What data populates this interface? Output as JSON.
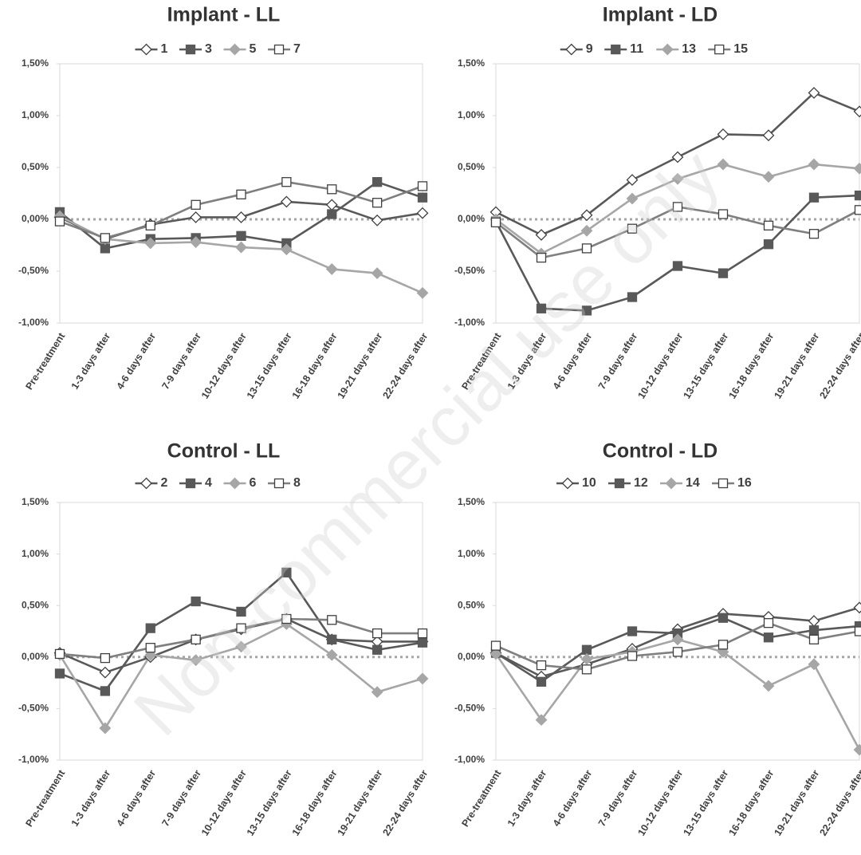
{
  "chart_data": [
    {
      "type": "line",
      "title": "Implant - LL",
      "categories": [
        "Pre-treatment",
        "1-3 days after",
        "4-6 days after",
        "7-9 days after",
        "10-12 days after",
        "13-15 days after",
        "16-18 days after",
        "19-21 days after",
        "22-24 days after"
      ],
      "ylim": [
        -1,
        1.5
      ],
      "yticks": [
        {
          "value": -1,
          "label": "-1,00%"
        },
        {
          "value": -0.5,
          "label": "-0,50%"
        },
        {
          "value": 0,
          "label": "0,00%"
        },
        {
          "value": 0.5,
          "label": "0,50%"
        },
        {
          "value": 1,
          "label": "1,00%"
        },
        {
          "value": 1.5,
          "label": "1,50%"
        }
      ],
      "reference_line": 0,
      "legend": "top",
      "series": [
        {
          "name": "1",
          "color": "#595959",
          "marker": "diamond",
          "marker_fill": "#ffffff",
          "values": [
            0.02,
            -0.19,
            -0.05,
            0.02,
            0.02,
            0.17,
            0.14,
            -0.01,
            0.06
          ]
        },
        {
          "name": "3",
          "color": "#595959",
          "marker": "square",
          "marker_fill": "#595959",
          "values": [
            0.07,
            -0.28,
            -0.19,
            -0.18,
            -0.16,
            -0.23,
            0.05,
            0.36,
            0.21
          ]
        },
        {
          "name": "5",
          "color": "#a6a6a6",
          "marker": "diamond",
          "marker_fill": "#a6a6a6",
          "values": [
            0.03,
            -0.19,
            -0.23,
            -0.22,
            -0.27,
            -0.29,
            -0.48,
            -0.52,
            -0.71
          ]
        },
        {
          "name": "7",
          "color": "#7f7f7f",
          "marker": "square",
          "marker_fill": "#ffffff",
          "values": [
            -0.02,
            -0.18,
            -0.06,
            0.14,
            0.24,
            0.36,
            0.29,
            0.16,
            0.32
          ]
        }
      ]
    },
    {
      "type": "line",
      "title": "Implant - LD",
      "categories": [
        "Pre-treatment",
        "1-3 days after",
        "4-6 days after",
        "7-9 days after",
        "10-12 days after",
        "13-15 days after",
        "16-18 days after",
        "19-21 days after",
        "22-24 days after"
      ],
      "ylim": [
        -1,
        1.5
      ],
      "yticks": [
        {
          "value": -1,
          "label": "-1,00%"
        },
        {
          "value": -0.5,
          "label": "-0,50%"
        },
        {
          "value": 0,
          "label": "0,00%"
        },
        {
          "value": 0.5,
          "label": "0,50%"
        },
        {
          "value": 1,
          "label": "1,00%"
        },
        {
          "value": 1.5,
          "label": "1,50%"
        }
      ],
      "reference_line": 0,
      "legend": "top",
      "series": [
        {
          "name": "9",
          "color": "#595959",
          "marker": "diamond",
          "marker_fill": "#ffffff",
          "values": [
            0.07,
            -0.15,
            0.04,
            0.38,
            0.6,
            0.82,
            0.81,
            1.22,
            1.04
          ]
        },
        {
          "name": "11",
          "color": "#595959",
          "marker": "square",
          "marker_fill": "#595959",
          "values": [
            -0.02,
            -0.86,
            -0.88,
            -0.75,
            -0.45,
            -0.52,
            -0.24,
            0.21,
            0.23
          ]
        },
        {
          "name": "13",
          "color": "#a6a6a6",
          "marker": "diamond",
          "marker_fill": "#a6a6a6",
          "values": [
            0.0,
            -0.33,
            -0.11,
            0.2,
            0.39,
            0.53,
            0.41,
            0.53,
            0.49
          ]
        },
        {
          "name": "15",
          "color": "#7f7f7f",
          "marker": "square",
          "marker_fill": "#ffffff",
          "values": [
            -0.03,
            -0.37,
            -0.28,
            -0.09,
            0.12,
            0.05,
            -0.06,
            -0.14,
            0.09
          ]
        }
      ]
    },
    {
      "type": "line",
      "title": "Control - LL",
      "categories": [
        "Pre-treatment",
        "1-3 days after",
        "4-6 days after",
        "7-9 days after",
        "10-12 days after",
        "13-15 days after",
        "16-18 days after",
        "19-21 days after",
        "22-24 days after"
      ],
      "ylim": [
        -1,
        1.5
      ],
      "yticks": [
        {
          "value": -1,
          "label": "-1,00%"
        },
        {
          "value": -0.5,
          "label": "-0,50%"
        },
        {
          "value": 0,
          "label": "0,00%"
        },
        {
          "value": 0.5,
          "label": "0,50%"
        },
        {
          "value": 1,
          "label": "1,00%"
        },
        {
          "value": 1.5,
          "label": "1,50%"
        }
      ],
      "reference_line": 0,
      "legend": "top",
      "series": [
        {
          "name": "2",
          "color": "#595959",
          "marker": "diamond",
          "marker_fill": "#ffffff",
          "values": [
            0.04,
            -0.15,
            0.0,
            0.17,
            0.27,
            0.37,
            0.17,
            0.15,
            0.15
          ]
        },
        {
          "name": "4",
          "color": "#595959",
          "marker": "square",
          "marker_fill": "#595959",
          "values": [
            -0.16,
            -0.33,
            0.28,
            0.54,
            0.44,
            0.82,
            0.17,
            0.07,
            0.14
          ]
        },
        {
          "name": "6",
          "color": "#a6a6a6",
          "marker": "diamond",
          "marker_fill": "#a6a6a6",
          "values": [
            0.02,
            -0.69,
            0.02,
            -0.03,
            0.1,
            0.32,
            0.02,
            -0.34,
            -0.21
          ]
        },
        {
          "name": "8",
          "color": "#7f7f7f",
          "marker": "square",
          "marker_fill": "#ffffff",
          "values": [
            0.03,
            -0.01,
            0.09,
            0.17,
            0.28,
            0.37,
            0.36,
            0.23,
            0.23
          ]
        }
      ]
    },
    {
      "type": "line",
      "title": "Control - LD",
      "categories": [
        "Pre-treatment",
        "1-3 days after",
        "4-6 days after",
        "7-9 days after",
        "10-12 days after",
        "13-15 days after",
        "16-18 days after",
        "19-21 days after",
        "22-24 days after"
      ],
      "ylim": [
        -1,
        1.5
      ],
      "yticks": [
        {
          "value": -1,
          "label": "-1,00%"
        },
        {
          "value": -0.5,
          "label": "-0,50%"
        },
        {
          "value": 0,
          "label": "0,00%"
        },
        {
          "value": 0.5,
          "label": "0,50%"
        },
        {
          "value": 1,
          "label": "1,00%"
        },
        {
          "value": 1.5,
          "label": "1,50%"
        }
      ],
      "reference_line": 0,
      "legend": "top",
      "series": [
        {
          "name": "10",
          "color": "#595959",
          "marker": "diamond",
          "marker_fill": "#ffffff",
          "values": [
            0.04,
            -0.19,
            -0.07,
            0.08,
            0.27,
            0.42,
            0.39,
            0.35,
            0.48
          ]
        },
        {
          "name": "12",
          "color": "#595959",
          "marker": "square",
          "marker_fill": "#595959",
          "values": [
            0.04,
            -0.24,
            0.07,
            0.25,
            0.23,
            0.38,
            0.19,
            0.26,
            0.3
          ]
        },
        {
          "name": "14",
          "color": "#a6a6a6",
          "marker": "diamond",
          "marker_fill": "#a6a6a6",
          "values": [
            0.03,
            -0.61,
            -0.02,
            0.05,
            0.17,
            0.05,
            -0.28,
            -0.07,
            -0.9
          ]
        },
        {
          "name": "16",
          "color": "#7f7f7f",
          "marker": "square",
          "marker_fill": "#ffffff",
          "values": [
            0.11,
            -0.08,
            -0.12,
            0.01,
            0.05,
            0.12,
            0.33,
            0.17,
            0.25
          ]
        }
      ]
    }
  ],
  "watermark": "Non-commercial use only"
}
